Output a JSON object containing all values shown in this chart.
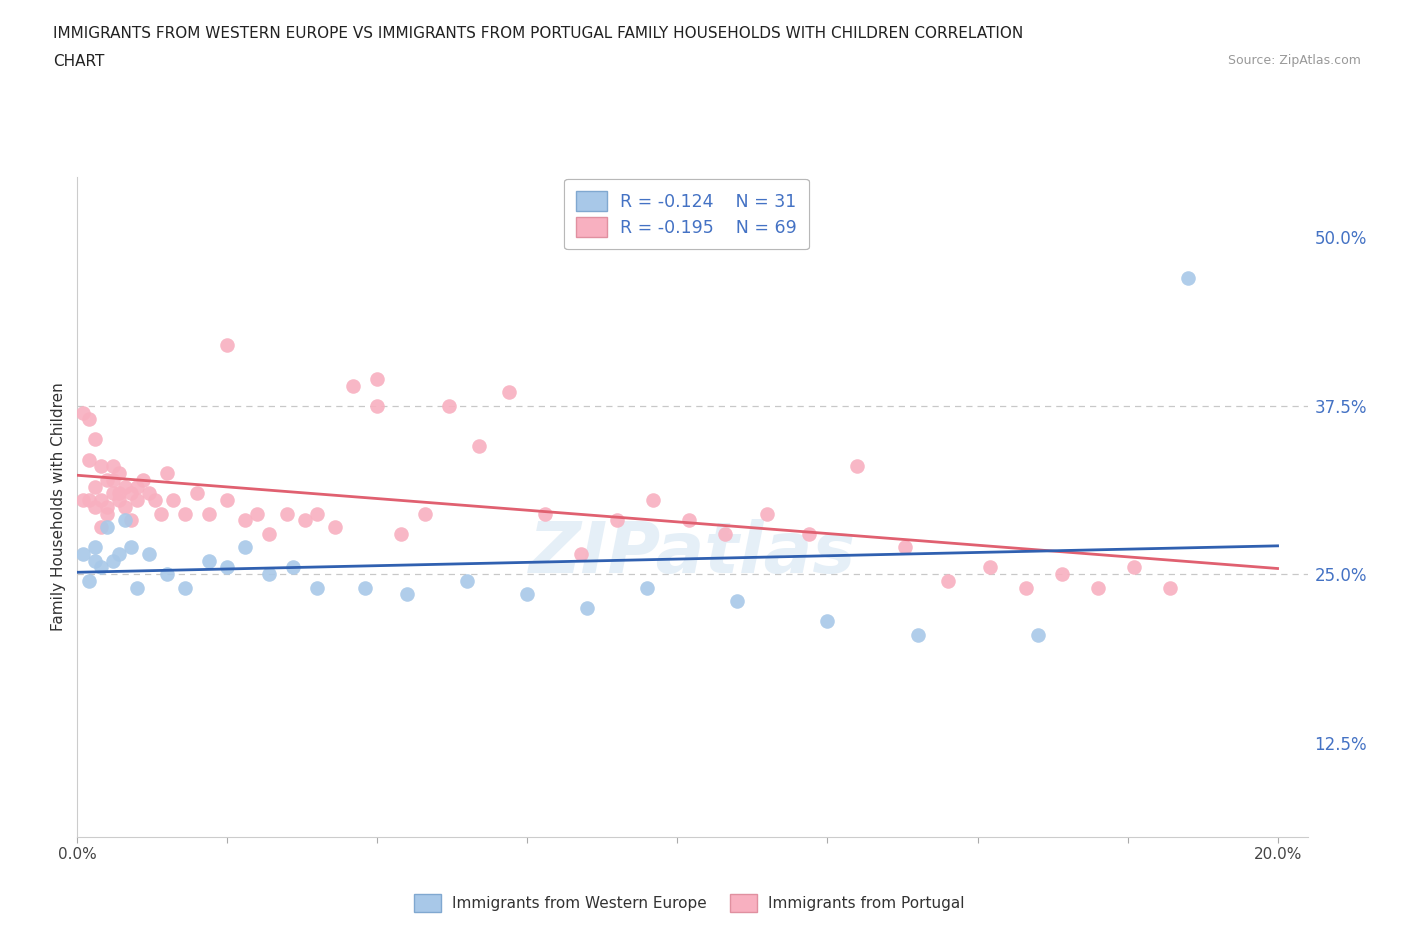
{
  "title_line1": "IMMIGRANTS FROM WESTERN EUROPE VS IMMIGRANTS FROM PORTUGAL FAMILY HOUSEHOLDS WITH CHILDREN CORRELATION",
  "title_line2": "CHART",
  "source": "Source: ZipAtlas.com",
  "ylabel": "Family Households with Children",
  "xlim": [
    0.0,
    0.205
  ],
  "ylim": [
    0.055,
    0.545
  ],
  "ytick_vals": [
    0.125,
    0.25,
    0.375,
    0.5
  ],
  "ytick_labels": [
    "12.5%",
    "25.0%",
    "37.5%",
    "50.0%"
  ],
  "xtick_vals": [
    0.0,
    0.025,
    0.05,
    0.075,
    0.1,
    0.125,
    0.15,
    0.175,
    0.2
  ],
  "xtick_labels": [
    "0.0%",
    "",
    "",
    "",
    "",
    "",
    "",
    "",
    "20.0%"
  ],
  "hlines": [
    0.25,
    0.375
  ],
  "r_western": -0.124,
  "n_western": 31,
  "r_portugal": -0.195,
  "n_portugal": 69,
  "western_scatter_color": "#a8c8e8",
  "portugal_scatter_color": "#f8b0c0",
  "western_line_color": "#3060b0",
  "portugal_line_color": "#e06070",
  "watermark": "ZIPatlas",
  "wx": [
    0.001,
    0.002,
    0.003,
    0.003,
    0.004,
    0.005,
    0.006,
    0.007,
    0.008,
    0.009,
    0.01,
    0.012,
    0.015,
    0.018,
    0.022,
    0.025,
    0.028,
    0.032,
    0.036,
    0.04,
    0.048,
    0.055,
    0.065,
    0.075,
    0.085,
    0.095,
    0.11,
    0.125,
    0.14,
    0.16,
    0.185
  ],
  "wy": [
    0.265,
    0.245,
    0.27,
    0.26,
    0.255,
    0.285,
    0.26,
    0.265,
    0.29,
    0.27,
    0.24,
    0.265,
    0.25,
    0.24,
    0.26,
    0.255,
    0.27,
    0.25,
    0.255,
    0.24,
    0.24,
    0.235,
    0.245,
    0.235,
    0.225,
    0.24,
    0.23,
    0.215,
    0.205,
    0.205,
    0.47
  ],
  "px": [
    0.001,
    0.001,
    0.002,
    0.002,
    0.002,
    0.003,
    0.003,
    0.003,
    0.004,
    0.004,
    0.004,
    0.005,
    0.005,
    0.005,
    0.006,
    0.006,
    0.006,
    0.007,
    0.007,
    0.007,
    0.008,
    0.008,
    0.009,
    0.009,
    0.01,
    0.01,
    0.011,
    0.012,
    0.013,
    0.014,
    0.015,
    0.016,
    0.018,
    0.02,
    0.022,
    0.025,
    0.028,
    0.03,
    0.032,
    0.035,
    0.038,
    0.04,
    0.043,
    0.046,
    0.05,
    0.054,
    0.058,
    0.062,
    0.067,
    0.072,
    0.078,
    0.084,
    0.09,
    0.096,
    0.102,
    0.108,
    0.115,
    0.122,
    0.13,
    0.138,
    0.145,
    0.152,
    0.158,
    0.164,
    0.17,
    0.176,
    0.182,
    0.025,
    0.05
  ],
  "py": [
    0.305,
    0.37,
    0.365,
    0.335,
    0.305,
    0.35,
    0.315,
    0.3,
    0.33,
    0.305,
    0.285,
    0.3,
    0.32,
    0.295,
    0.31,
    0.33,
    0.32,
    0.305,
    0.325,
    0.31,
    0.315,
    0.3,
    0.31,
    0.29,
    0.305,
    0.315,
    0.32,
    0.31,
    0.305,
    0.295,
    0.325,
    0.305,
    0.295,
    0.31,
    0.295,
    0.305,
    0.29,
    0.295,
    0.28,
    0.295,
    0.29,
    0.295,
    0.285,
    0.39,
    0.375,
    0.28,
    0.295,
    0.375,
    0.345,
    0.385,
    0.295,
    0.265,
    0.29,
    0.305,
    0.29,
    0.28,
    0.295,
    0.28,
    0.33,
    0.27,
    0.245,
    0.255,
    0.24,
    0.25,
    0.24,
    0.255,
    0.24,
    0.42,
    0.395
  ]
}
